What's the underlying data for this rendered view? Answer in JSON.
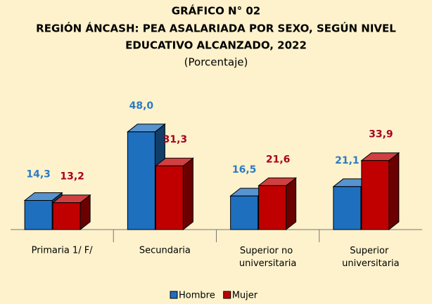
{
  "chart_data": {
    "type": "bar3d",
    "title": "GRÁFICO N° 02",
    "subtitle": [
      "REGIÓN ÁNCASH: PEA ASALARIADA POR SEXO, SEGÚN NIVEL",
      "EDUCATIVO ALCANZADO, 2022"
    ],
    "unit_label": "(Porcentaje)",
    "categories": [
      "Primaria 1/ F/",
      "Secundaria",
      "Superior no universitaria",
      "Superior universitaria"
    ],
    "series": [
      {
        "name": "Hombre",
        "color": "#1f6fbf",
        "label_color": "#2b7bc4",
        "values": [
          14.3,
          48.0,
          16.5,
          21.1
        ],
        "value_labels": [
          "14,3",
          "48,0",
          "16,5",
          "21,1"
        ]
      },
      {
        "name": "Mujer",
        "color": "#c00000",
        "label_color": "#a8001e",
        "values": [
          13.2,
          31.3,
          21.6,
          33.9
        ],
        "value_labels": [
          "13,2",
          "31,3",
          "21,6",
          "33,9"
        ]
      }
    ]
  }
}
